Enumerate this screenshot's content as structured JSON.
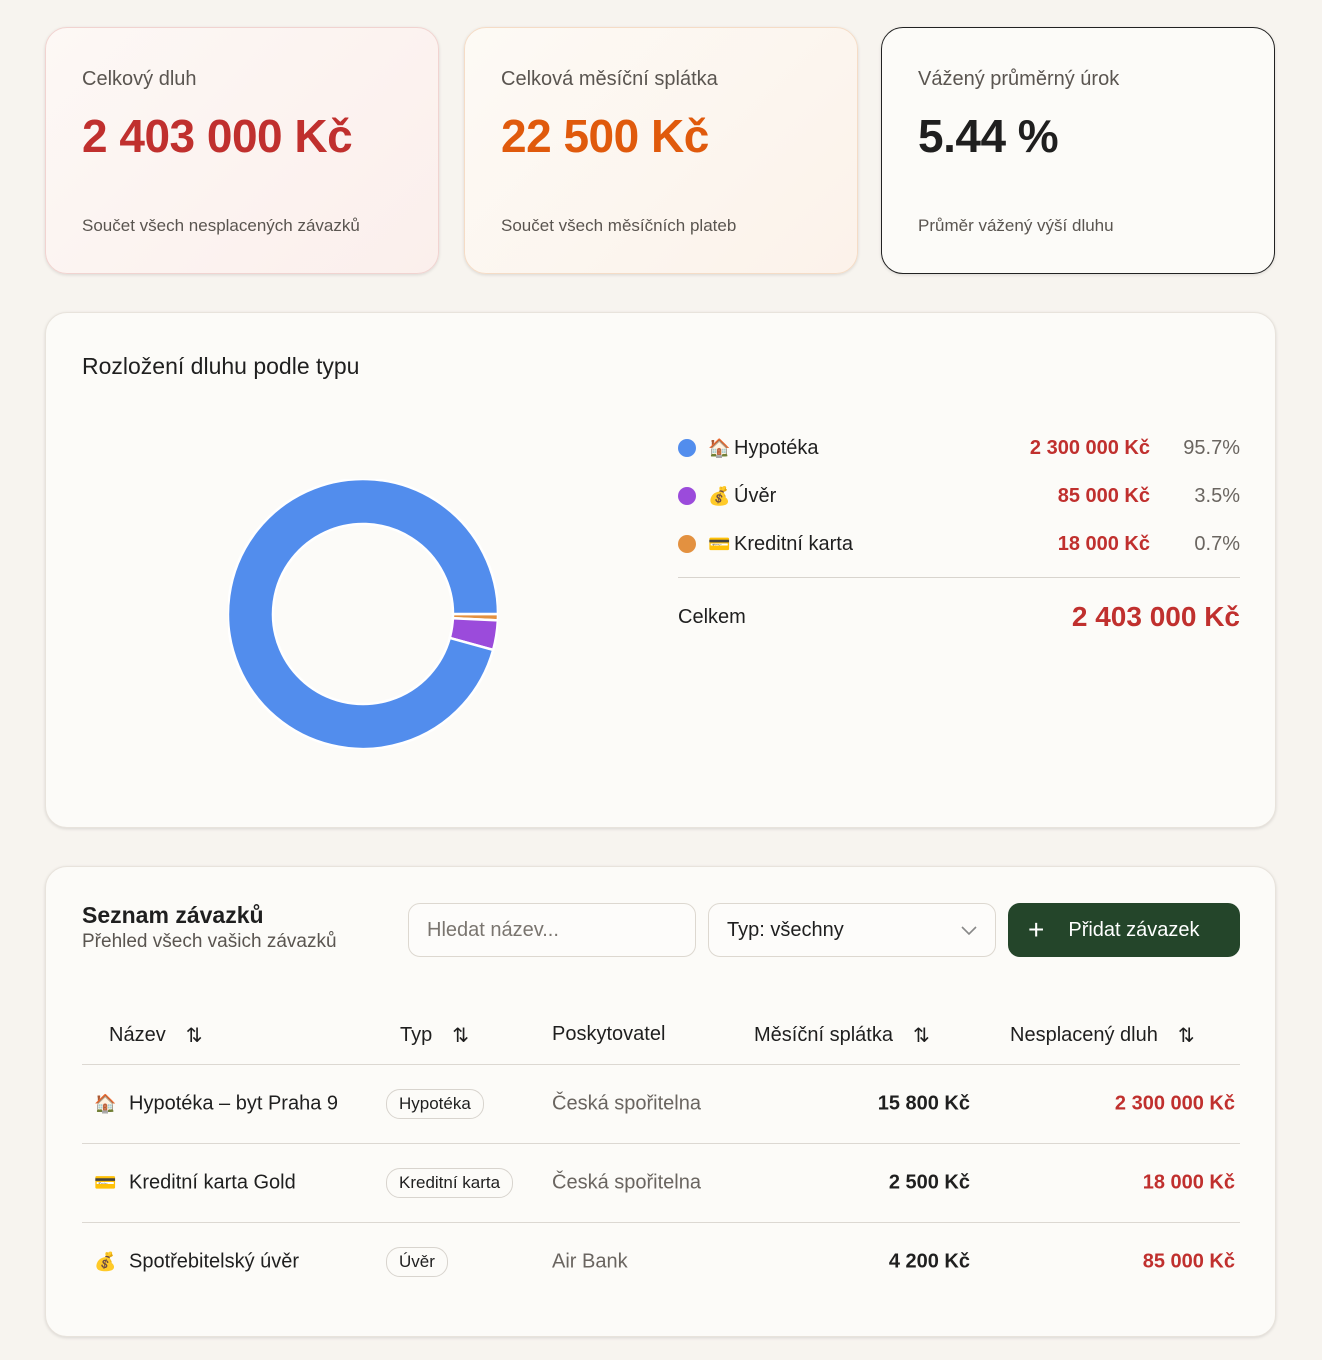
{
  "stats": [
    {
      "label": "Celkový dluh",
      "value": "2 403 000 Kč",
      "sub": "Součet všech nesplacených závazků",
      "color": "#c0302e"
    },
    {
      "label": "Celková měsíční splátka",
      "value": "22 500 Kč",
      "sub": "Součet všech měsíčních plateb",
      "color": "#e05a0c"
    },
    {
      "label": "Vážený průměrný úrok",
      "value": "5.44 %",
      "sub": "Průměr vážený výší dluhu",
      "color": "#1f1f1f"
    }
  ],
  "breakdown": {
    "title": "Rozložení dluhu podle typu",
    "total_label": "Celkem",
    "total": "2 403 000 Kč",
    "items": [
      {
        "icon": "🏠",
        "name": "Hypotéka",
        "amount": "2 300 000 Kč",
        "pct": "95.7%",
        "color": "#528ded"
      },
      {
        "icon": "💰",
        "name": "Úvěr",
        "amount": "85 000 Kč",
        "pct": "3.5%",
        "color": "#9b4bdb"
      },
      {
        "icon": "💳",
        "name": "Kreditní karta",
        "amount": "18 000 Kč",
        "pct": "0.7%",
        "color": "#e39140"
      }
    ]
  },
  "chart_data": {
    "type": "pie",
    "categories": [
      "Hypotéka",
      "Úvěr",
      "Kreditní karta"
    ],
    "values": [
      2300000,
      85000,
      18000
    ],
    "colors": [
      "#528ded",
      "#9b4bdb",
      "#e39140"
    ]
  },
  "list": {
    "title": "Seznam závazků",
    "subtitle": "Přehled všech vašich závazků",
    "search_placeholder": "Hledat název...",
    "type_filter": "Typ: všechny",
    "add_label": "Přidat závazek",
    "columns": [
      "Název",
      "Typ",
      "Poskytovatel",
      "Měsíční splátka",
      "Nesplacený dluh"
    ],
    "rows": [
      {
        "icon": "🏠",
        "name": "Hypotéka – byt Praha 9",
        "type": "Hypotéka",
        "provider": "Česká spořitelna",
        "monthly": "15 800 Kč",
        "debt": "2 300 000 Kč"
      },
      {
        "icon": "💳",
        "name": "Kreditní karta Gold",
        "type": "Kreditní karta",
        "provider": "Česká spořitelna",
        "monthly": "2 500 Kč",
        "debt": "18 000 Kč"
      },
      {
        "icon": "💰",
        "name": "Spotřebitelský úvěr",
        "type": "Úvěr",
        "provider": "Air Bank",
        "monthly": "4 200 Kč",
        "debt": "85 000 Kč"
      }
    ]
  }
}
